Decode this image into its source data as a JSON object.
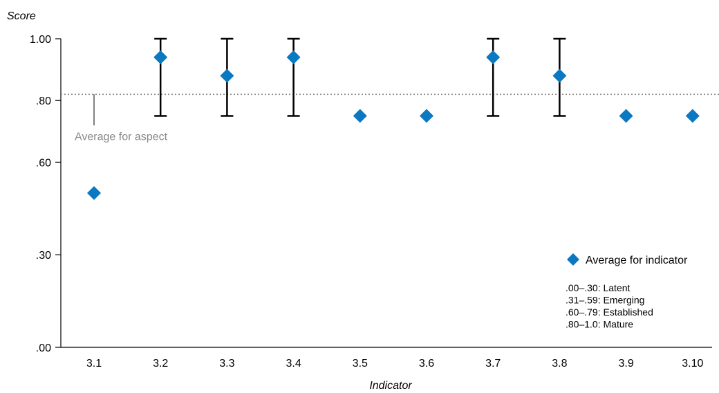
{
  "chart_data": {
    "type": "scatter",
    "ylabel": "Score",
    "xlabel": "Indicator",
    "categories": [
      "3.1",
      "3.2",
      "3.3",
      "3.4",
      "3.5",
      "3.6",
      "3.7",
      "3.8",
      "3.9",
      "3.10"
    ],
    "series": [
      {
        "name": "Average for indicator",
        "values": [
          0.5,
          0.94,
          0.88,
          0.94,
          0.75,
          0.75,
          0.94,
          0.88,
          0.75,
          0.75
        ],
        "error_low": [
          null,
          0.75,
          0.75,
          0.75,
          null,
          null,
          0.75,
          0.75,
          null,
          null
        ],
        "error_high": [
          null,
          1.0,
          1.0,
          1.0,
          null,
          null,
          1.0,
          1.0,
          null,
          null
        ]
      }
    ],
    "ylim": [
      0,
      1.0
    ],
    "yticks": [
      {
        "value": 0,
        "label": ".00"
      },
      {
        "value": 0.3,
        "label": ".30"
      },
      {
        "value": 0.6,
        "label": ".60"
      },
      {
        "value": 0.8,
        "label": ".80"
      },
      {
        "value": 1.0,
        "label": "1.00"
      }
    ],
    "reference_line": {
      "value": 0.82,
      "label": "Average for aspect",
      "style": "dotted"
    },
    "legend": {
      "position": "lower-right",
      "entry": "Average for indicator",
      "scale": [
        ".00–.30: Latent",
        ".31–.59: Emerging",
        ".60–.79: Established",
        ".80–1.0: Mature"
      ]
    },
    "colors": {
      "marker": "#0b78c2",
      "error_bar": "#000000",
      "reference": "#888888",
      "axis": "#000000"
    },
    "grid": false
  }
}
